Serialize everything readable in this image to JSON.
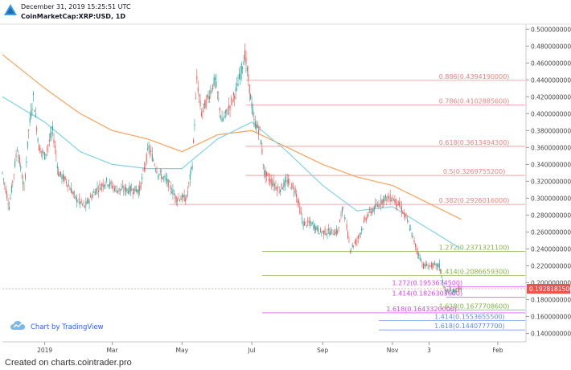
{
  "header": {
    "timestamp": "December 31, 2019 15:25:51 UTC",
    "symbol": "CoinMarketCap:XRP:USD, 1D"
  },
  "footer": {
    "credit": "Created on charts.cointrader.pro"
  },
  "branding": {
    "label": "Chart by TradingView",
    "icon": "tradingview-cloud-icon"
  },
  "colors": {
    "up": "#26a69a",
    "down": "#ef5350",
    "ma_orange": "#f7a35c",
    "ma_blue": "#7fd3e6",
    "fib_red": "#f08080",
    "fib_green": "#7cb342",
    "fib_magenta": "#e040fb",
    "fib_blue": "#5b8def",
    "price_badge": "#ef5350"
  },
  "chart_data": {
    "type": "candlestick",
    "x_axis": {
      "start": "2018-11-25",
      "end": "2020-02-25",
      "ticks": [
        {
          "date": "2019-01-01",
          "label": "2019"
        },
        {
          "date": "2019-03-01",
          "label": "Mar"
        },
        {
          "date": "2019-05-01",
          "label": "May"
        },
        {
          "date": "2019-07-01",
          "label": "Jul"
        },
        {
          "date": "2019-09-01",
          "label": "Sep"
        },
        {
          "date": "2019-11-01",
          "label": "Nov"
        },
        {
          "date": "2019-12-03",
          "label": "3"
        },
        {
          "date": "2020-02-01",
          "label": "Feb"
        }
      ]
    },
    "y_axis": {
      "min": 0.13,
      "max": 0.505,
      "position": "right",
      "ticks": [
        "0.5000000000",
        "0.4800000000",
        "0.4600000000",
        "0.4400000000",
        "0.4200000000",
        "0.4000000000",
        "0.3800000000",
        "0.3600000000",
        "0.3400000000",
        "0.3200000000",
        "0.3000000000",
        "0.2800000000",
        "0.2600000000",
        "0.2400000000",
        "0.2200000000",
        "0.2000000000",
        "0.1800000000",
        "0.1600000000",
        "0.1400000000"
      ]
    },
    "last_price": {
      "value": 0.19281815,
      "label": "0.1928181500"
    },
    "price_path": [
      [
        "2018-11-25",
        0.33
      ],
      [
        "2018-12-01",
        0.29
      ],
      [
        "2018-12-08",
        0.36
      ],
      [
        "2018-12-14",
        0.31
      ],
      [
        "2018-12-18",
        0.38
      ],
      [
        "2018-12-22",
        0.42
      ],
      [
        "2018-12-27",
        0.36
      ],
      [
        "2019-01-01",
        0.35
      ],
      [
        "2019-01-08",
        0.38
      ],
      [
        "2019-01-13",
        0.33
      ],
      [
        "2019-01-20",
        0.32
      ],
      [
        "2019-01-28",
        0.3
      ],
      [
        "2019-02-05",
        0.29
      ],
      [
        "2019-02-15",
        0.31
      ],
      [
        "2019-02-24",
        0.32
      ],
      [
        "2019-03-05",
        0.31
      ],
      [
        "2019-03-15",
        0.31
      ],
      [
        "2019-03-25",
        0.31
      ],
      [
        "2019-04-02",
        0.36
      ],
      [
        "2019-04-10",
        0.33
      ],
      [
        "2019-04-18",
        0.32
      ],
      [
        "2019-04-26",
        0.3
      ],
      [
        "2019-05-05",
        0.3
      ],
      [
        "2019-05-10",
        0.34
      ],
      [
        "2019-05-14",
        0.44
      ],
      [
        "2019-05-18",
        0.4
      ],
      [
        "2019-05-24",
        0.42
      ],
      [
        "2019-05-30",
        0.44
      ],
      [
        "2019-06-05",
        0.39
      ],
      [
        "2019-06-12",
        0.41
      ],
      [
        "2019-06-18",
        0.43
      ],
      [
        "2019-06-25",
        0.47
      ],
      [
        "2019-06-29",
        0.43
      ],
      [
        "2019-07-03",
        0.39
      ],
      [
        "2019-07-08",
        0.38
      ],
      [
        "2019-07-12",
        0.33
      ],
      [
        "2019-07-18",
        0.32
      ],
      [
        "2019-07-25",
        0.31
      ],
      [
        "2019-08-01",
        0.32
      ],
      [
        "2019-08-08",
        0.31
      ],
      [
        "2019-08-15",
        0.27
      ],
      [
        "2019-08-22",
        0.27
      ],
      [
        "2019-08-30",
        0.26
      ],
      [
        "2019-09-06",
        0.26
      ],
      [
        "2019-09-14",
        0.26
      ],
      [
        "2019-09-19",
        0.29
      ],
      [
        "2019-09-25",
        0.24
      ],
      [
        "2019-10-01",
        0.25
      ],
      [
        "2019-10-10",
        0.28
      ],
      [
        "2019-10-18",
        0.29
      ],
      [
        "2019-10-25",
        0.3
      ],
      [
        "2019-11-01",
        0.3
      ],
      [
        "2019-11-08",
        0.29
      ],
      [
        "2019-11-15",
        0.27
      ],
      [
        "2019-11-22",
        0.24
      ],
      [
        "2019-11-28",
        0.22
      ],
      [
        "2019-12-05",
        0.22
      ],
      [
        "2019-12-12",
        0.22
      ],
      [
        "2019-12-17",
        0.19
      ],
      [
        "2019-12-24",
        0.19
      ],
      [
        "2019-12-31",
        0.193
      ]
    ],
    "moving_averages": [
      {
        "color": "#f7a35c",
        "points": [
          [
            "2018-11-25",
            0.47
          ],
          [
            "2019-01-01",
            0.43
          ],
          [
            "2019-02-01",
            0.4
          ],
          [
            "2019-03-01",
            0.38
          ],
          [
            "2019-04-01",
            0.37
          ],
          [
            "2019-05-01",
            0.355
          ],
          [
            "2019-06-01",
            0.375
          ],
          [
            "2019-07-01",
            0.38
          ],
          [
            "2019-08-01",
            0.36
          ],
          [
            "2019-09-01",
            0.34
          ],
          [
            "2019-10-01",
            0.325
          ],
          [
            "2019-11-01",
            0.315
          ],
          [
            "2019-12-01",
            0.295
          ],
          [
            "2019-12-31",
            0.275
          ]
        ]
      },
      {
        "color": "#7fd3e6",
        "points": [
          [
            "2018-11-25",
            0.42
          ],
          [
            "2019-01-01",
            0.39
          ],
          [
            "2019-02-01",
            0.355
          ],
          [
            "2019-03-01",
            0.34
          ],
          [
            "2019-04-01",
            0.335
          ],
          [
            "2019-05-01",
            0.335
          ],
          [
            "2019-06-01",
            0.37
          ],
          [
            "2019-07-01",
            0.39
          ],
          [
            "2019-08-01",
            0.355
          ],
          [
            "2019-09-01",
            0.315
          ],
          [
            "2019-10-01",
            0.285
          ],
          [
            "2019-11-01",
            0.29
          ],
          [
            "2019-12-01",
            0.265
          ],
          [
            "2019-12-31",
            0.24
          ]
        ]
      }
    ],
    "fib_levels": [
      {
        "label": "0.886(0.4394190000)",
        "value": 0.439419,
        "color": "#f08080",
        "from": "2019-06-26",
        "text_date": "2019-10-05"
      },
      {
        "label": "0.786(0.4102885600)",
        "value": 0.41028856,
        "color": "#f08080",
        "from": "2019-06-26",
        "text_date": "2019-10-05"
      },
      {
        "label": "0.618(0.3613494300)",
        "value": 0.36134943,
        "color": "#f08080",
        "from": "2019-06-26",
        "text_date": "2019-10-05"
      },
      {
        "label": "0.5(0.3269755200)",
        "value": 0.32697552,
        "color": "#f08080",
        "from": "2019-06-26",
        "text_date": "2019-10-05"
      },
      {
        "label": "0.382(0.2926016000)",
        "value": 0.2926016,
        "color": "#f08080",
        "from": "2019-04-20",
        "text_date": "2019-10-05"
      },
      {
        "label": "1.272(0.2371321100)",
        "value": 0.23713211,
        "color": "#7cb342",
        "from": "2019-07-10",
        "text_date": "2019-10-05"
      },
      {
        "label": "1.414(0.2086659300)",
        "value": 0.20866593,
        "color": "#7cb342",
        "from": "2019-07-10",
        "text_date": "2019-10-05"
      },
      {
        "label": "1.272(0.1953674500)",
        "value": 0.19536745,
        "color": "#e040fb",
        "from": "2019-12-18",
        "text_date": "2019-08-25"
      },
      {
        "label": "1.414(0.1826303600)",
        "value": 0.18263036,
        "color": "#e040fb",
        "from": "2019-12-18",
        "text_date": "2019-08-25"
      },
      {
        "label": "1.618(0.1643320000)",
        "value": 0.164332,
        "color": "#e040fb",
        "from": "2019-07-10",
        "text_date": "2019-08-20"
      },
      {
        "label": "1.618(0.1677708600)",
        "value": 0.16777086,
        "color": "#7cb342",
        "from": "2019-12-18",
        "text_date": "2019-10-05"
      },
      {
        "label": "1.414(0.1553655500)",
        "value": 0.15536555,
        "color": "#5b8def",
        "from": "2019-10-20",
        "text_date": "2019-10-01"
      },
      {
        "label": "1.618(0.1440777700)",
        "value": 0.14407777,
        "color": "#5b8def",
        "from": "2019-10-20",
        "text_date": "2019-10-01"
      }
    ]
  }
}
